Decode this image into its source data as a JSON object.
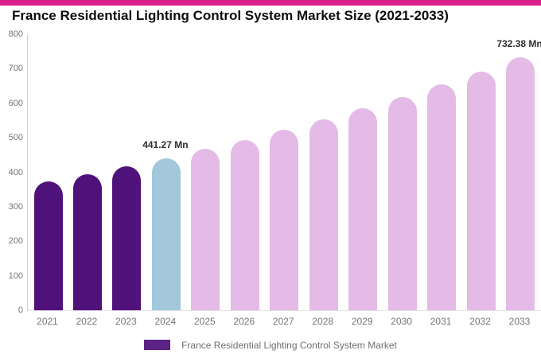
{
  "page": {
    "top_band_color": "#DB1F8D",
    "background_color": "#ffffff"
  },
  "chart_data": {
    "type": "bar",
    "title": "France Residential Lighting Control System Market Size (2021-2033)",
    "xlabel": "",
    "ylabel": "",
    "unit": "Mn",
    "ylim": [
      0,
      800
    ],
    "y_ticks": [
      0,
      100,
      200,
      300,
      400,
      500,
      600,
      700,
      800
    ],
    "grid": "off",
    "categories": [
      "2021",
      "2022",
      "2023",
      "2024",
      "2025",
      "2026",
      "2027",
      "2028",
      "2029",
      "2030",
      "2031",
      "2032",
      "2033"
    ],
    "values": [
      372.6,
      394.3,
      417.1,
      441.27,
      466.9,
      493.9,
      522.5,
      552.7,
      584.7,
      618.6,
      654.4,
      692.3,
      732.38
    ],
    "bar_roles": [
      "historical",
      "historical",
      "historical",
      "current",
      "forecast",
      "forecast",
      "forecast",
      "forecast",
      "forecast",
      "forecast",
      "forecast",
      "forecast",
      "forecast"
    ],
    "bar_colors": {
      "historical": "#4F117A",
      "current": "#A3C8DC",
      "forecast": "#E4BBE7"
    },
    "data_labels": [
      {
        "category": "2024",
        "text": "441.27 Mn"
      },
      {
        "category": "2033",
        "text": "732.38 Mn"
      }
    ],
    "legend": {
      "label": "France Residential Lighting Control System Market",
      "swatch_color": "#5B2386",
      "position": "bottom-center"
    },
    "styles": {
      "title_color": "#0d0d0d",
      "axis_line_color": "#cfcfcf",
      "tick_label_color": "#757575",
      "data_label_color": "#2e2e2e"
    }
  }
}
